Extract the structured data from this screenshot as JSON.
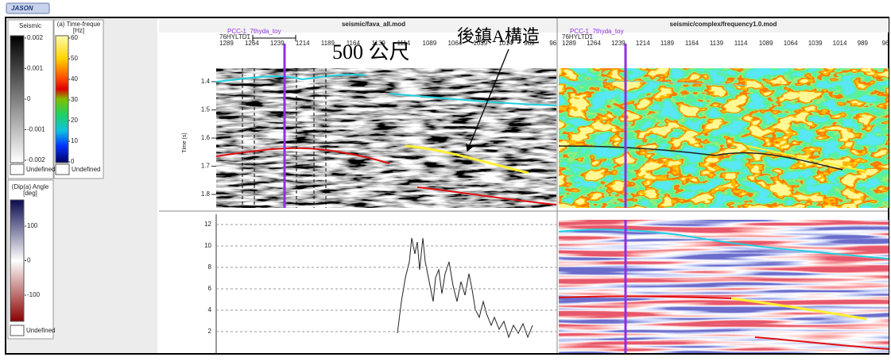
{
  "header": {
    "logo": "JASON"
  },
  "legends": [
    {
      "title": "Seismic",
      "ticks": [
        0.002,
        0.001,
        0,
        -0.001,
        -0.002
      ],
      "undefined": "Undefined"
    },
    {
      "title": "(a) Time-freque",
      "unit": "[Hz]",
      "ticks": [
        60,
        50,
        40,
        30,
        20,
        10,
        0
      ],
      "undefined": "Undefined"
    },
    {
      "title": "(Dip(a) Angle",
      "unit": "[deg]",
      "ticks": [
        100,
        0,
        -100
      ],
      "undefined": "Undefined"
    }
  ],
  "views": [
    {
      "title": "seismic/fava_all.mod",
      "well": "PCC-1_7thyda_toy",
      "line": "76HYLTD1",
      "traces": [
        1289,
        1264,
        1239,
        1214,
        1189,
        1164,
        1139,
        1114,
        1089,
        1064,
        1039,
        1014,
        989,
        96
      ]
    },
    {
      "title": "seismic/complex/frequency1.0.mod",
      "well": "PCC-1_7thyda_toy",
      "line": "76HYLTD1",
      "traces": [
        1289,
        1264,
        1239,
        1214,
        1189,
        1164,
        1139,
        1114,
        1089,
        1064,
        1039,
        1014,
        989,
        96
      ]
    }
  ],
  "time_axis": {
    "label": "Time (s)",
    "ticks": [
      1.4,
      1.5,
      1.6,
      1.7,
      1.8
    ]
  },
  "log_axis": {
    "ticks": [
      12,
      10,
      8,
      6,
      4,
      2
    ]
  },
  "annotations": {
    "scale": "500 公尺",
    "structure": "後鎮A構造"
  }
}
